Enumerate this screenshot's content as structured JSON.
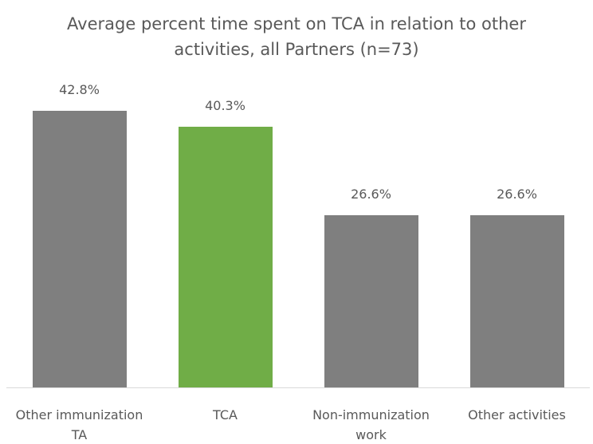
{
  "chart_data": {
    "type": "bar",
    "title": "Average percent time spent on TCA in relation to other activities, all Partners (n=73)",
    "categories": [
      "Other immunization TA",
      "TCA",
      "Non-immunization work",
      "Other activities"
    ],
    "values": [
      42.8,
      40.3,
      26.6,
      26.6
    ],
    "value_labels": [
      "42.8%",
      "40.3%",
      "26.6%",
      "26.6%"
    ],
    "colors": [
      "#7f7f7f",
      "#70ad47",
      "#7f7f7f",
      "#7f7f7f"
    ]
  }
}
